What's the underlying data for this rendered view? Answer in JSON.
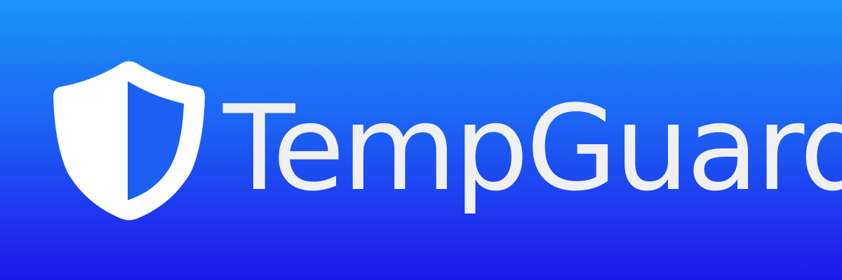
{
  "brand": {
    "name": "TempGuard",
    "logo_icon": "shield-icon"
  },
  "colors": {
    "background_top": "#1a96f7",
    "background_bottom": "#1e17ea",
    "logo_white": "#ffffff",
    "text": "#f0f0f3"
  }
}
